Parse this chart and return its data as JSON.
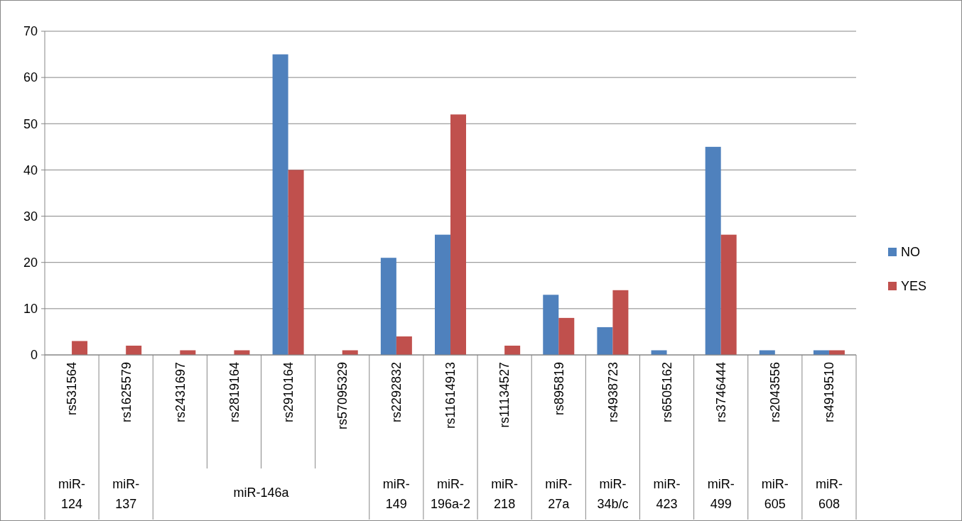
{
  "chart_data": {
    "type": "bar",
    "categories": [
      "rs531564",
      "rs1625579",
      "rs2431697",
      "rs2819164",
      "rs2910164",
      "rs57095329",
      "rs2292832",
      "rs11614913",
      "rs11134527",
      "rs895819",
      "rs4938723",
      "rs6505162",
      "rs3746444",
      "rs2043556",
      "rs4919510"
    ],
    "series": [
      {
        "name": "NO",
        "color": "#4f81bd",
        "values": [
          0,
          0,
          0,
          0,
          65,
          0,
          21,
          26,
          0,
          13,
          6,
          1,
          45,
          1,
          1
        ]
      },
      {
        "name": "YES",
        "color": "#c0504d",
        "values": [
          3,
          2,
          1,
          1,
          40,
          1,
          4,
          52,
          2,
          8,
          14,
          0,
          26,
          0,
          1
        ]
      }
    ],
    "ylim": [
      0,
      70
    ],
    "yticks": [
      0,
      10,
      20,
      30,
      40,
      50,
      60,
      70
    ],
    "grid": "y",
    "legend": "right",
    "annotations": [
      "miR-124",
      "miR-137",
      "miR-146a",
      "miR-149",
      "miR-196a-2",
      "miR-218",
      "miR-27a",
      "miR-34b/c",
      "miR-423",
      "miR-499",
      "miR-605",
      "miR-608"
    ]
  }
}
